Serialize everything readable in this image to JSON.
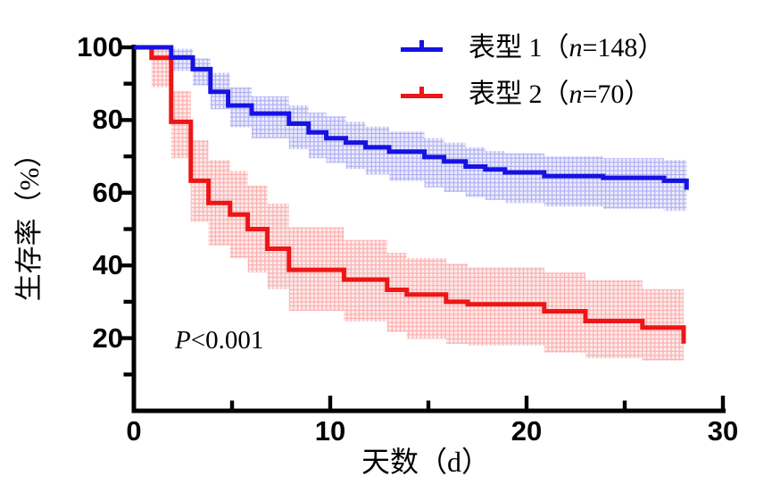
{
  "figure": {
    "background": "#ffffff",
    "axis_color": "#000000"
  },
  "annotation": {
    "p_italic": "P",
    "p_rest": "<0.001",
    "full": "P<0.001"
  },
  "legend": {
    "position": "top-right",
    "items": [
      {
        "prefix": "表型 1（",
        "italic": "n",
        "suffix": "=148）",
        "full": "表型 1（n=148）",
        "color": "#1612e2"
      },
      {
        "prefix": "表型 2（",
        "italic": "n",
        "suffix": "=70）",
        "full": "表型 2（n=70）",
        "color": "#ed1515"
      }
    ]
  },
  "chart_data": {
    "type": "line",
    "variant": "kaplan-meier-survival-steps",
    "title": "",
    "xlabel": "天数（d）",
    "ylabel": "生存率（%）",
    "xlim": [
      0,
      30
    ],
    "ylim": [
      0,
      100
    ],
    "grid": false,
    "legend_position": "top-right",
    "x_ticks_major": [
      0,
      10,
      20,
      30
    ],
    "x_ticks_minor": [
      5,
      15,
      25
    ],
    "y_ticks_major": [
      100,
      80,
      60,
      40,
      20
    ],
    "y_ticks_minor": [
      90,
      70,
      50,
      30,
      10
    ],
    "p_value": "P<0.001",
    "series": [
      {
        "name": "表型 1（n=148）",
        "n": 148,
        "color": "#1612e2",
        "band_bg": "rgba(80,80,230,0.10)",
        "band_line": "rgba(80,80,230,0.40)",
        "steps": [
          [
            0,
            100
          ],
          [
            1.9,
            97.2
          ],
          [
            3,
            94
          ],
          [
            3.9,
            87.8
          ],
          [
            4.8,
            84
          ],
          [
            6,
            81.8
          ],
          [
            7.9,
            79
          ],
          [
            8.9,
            76.6
          ],
          [
            9.8,
            75
          ],
          [
            10.8,
            73.8
          ],
          [
            11.8,
            72.5
          ],
          [
            13,
            71.3
          ],
          [
            14.8,
            69.8
          ],
          [
            15.8,
            68.6
          ],
          [
            16.9,
            67.2
          ],
          [
            17.9,
            66.4
          ],
          [
            18.9,
            65.6
          ],
          [
            20.9,
            64.6
          ],
          [
            23.9,
            64.1
          ],
          [
            27,
            63.3
          ]
        ],
        "end_x": 28.15,
        "end_drop": 60.8,
        "ci": [
          [
            1.9,
            99.6,
            93.5
          ],
          [
            3,
            97,
            89.5
          ],
          [
            3.9,
            93,
            83
          ],
          [
            4.9,
            89,
            78
          ],
          [
            6,
            86.5,
            75
          ],
          [
            7.9,
            84,
            72
          ],
          [
            8.9,
            82,
            69.5
          ],
          [
            9.8,
            81,
            68.2
          ],
          [
            10.8,
            79.5,
            66.5
          ],
          [
            11.8,
            78.2,
            65
          ],
          [
            13,
            76.8,
            63.2
          ],
          [
            14.8,
            75,
            61.5
          ],
          [
            15.8,
            73.8,
            60.2
          ],
          [
            16.9,
            72.5,
            58.8
          ],
          [
            17.9,
            71.5,
            58
          ],
          [
            18.9,
            70.8,
            57.2
          ],
          [
            20.9,
            70,
            56.2
          ],
          [
            23.9,
            69.5,
            55.6
          ],
          [
            27,
            69,
            55
          ]
        ]
      },
      {
        "name": "表型 2（n=70）",
        "n": 70,
        "color": "#ed1515",
        "band_bg": "rgba(245,90,90,0.12)",
        "band_line": "rgba(245,90,90,0.42)",
        "steps": [
          [
            0,
            100
          ],
          [
            0.9,
            97.1
          ],
          [
            1.9,
            79.5
          ],
          [
            2.9,
            63.3
          ],
          [
            3.8,
            57.2
          ],
          [
            4.9,
            54
          ],
          [
            5.8,
            50
          ],
          [
            6.8,
            44.6
          ],
          [
            7.9,
            38.8
          ],
          [
            10.7,
            36.1
          ],
          [
            12.9,
            33.3
          ],
          [
            13.9,
            32
          ],
          [
            15.9,
            30
          ],
          [
            17,
            29.3
          ],
          [
            20.9,
            27.4
          ],
          [
            23,
            24.7
          ],
          [
            25.9,
            22.9
          ]
        ],
        "end_x": 28,
        "end_drop": 18.5,
        "ci": [
          [
            0.9,
            99.9,
            89
          ],
          [
            1.9,
            88,
            69.5
          ],
          [
            2.9,
            74.5,
            52
          ],
          [
            3.8,
            69,
            45.5
          ],
          [
            4.9,
            66,
            42
          ],
          [
            5.8,
            62,
            38
          ],
          [
            6.8,
            57,
            33.5
          ],
          [
            7.9,
            50.5,
            27.5
          ],
          [
            10.7,
            47,
            24.6
          ],
          [
            12.9,
            43.5,
            21.7
          ],
          [
            13.9,
            42,
            19.8
          ],
          [
            15.9,
            40.5,
            18.4
          ],
          [
            17,
            39.5,
            18
          ],
          [
            20.9,
            38,
            16
          ],
          [
            23,
            36,
            14.5
          ],
          [
            25.9,
            33.5,
            13.8
          ]
        ]
      }
    ]
  }
}
